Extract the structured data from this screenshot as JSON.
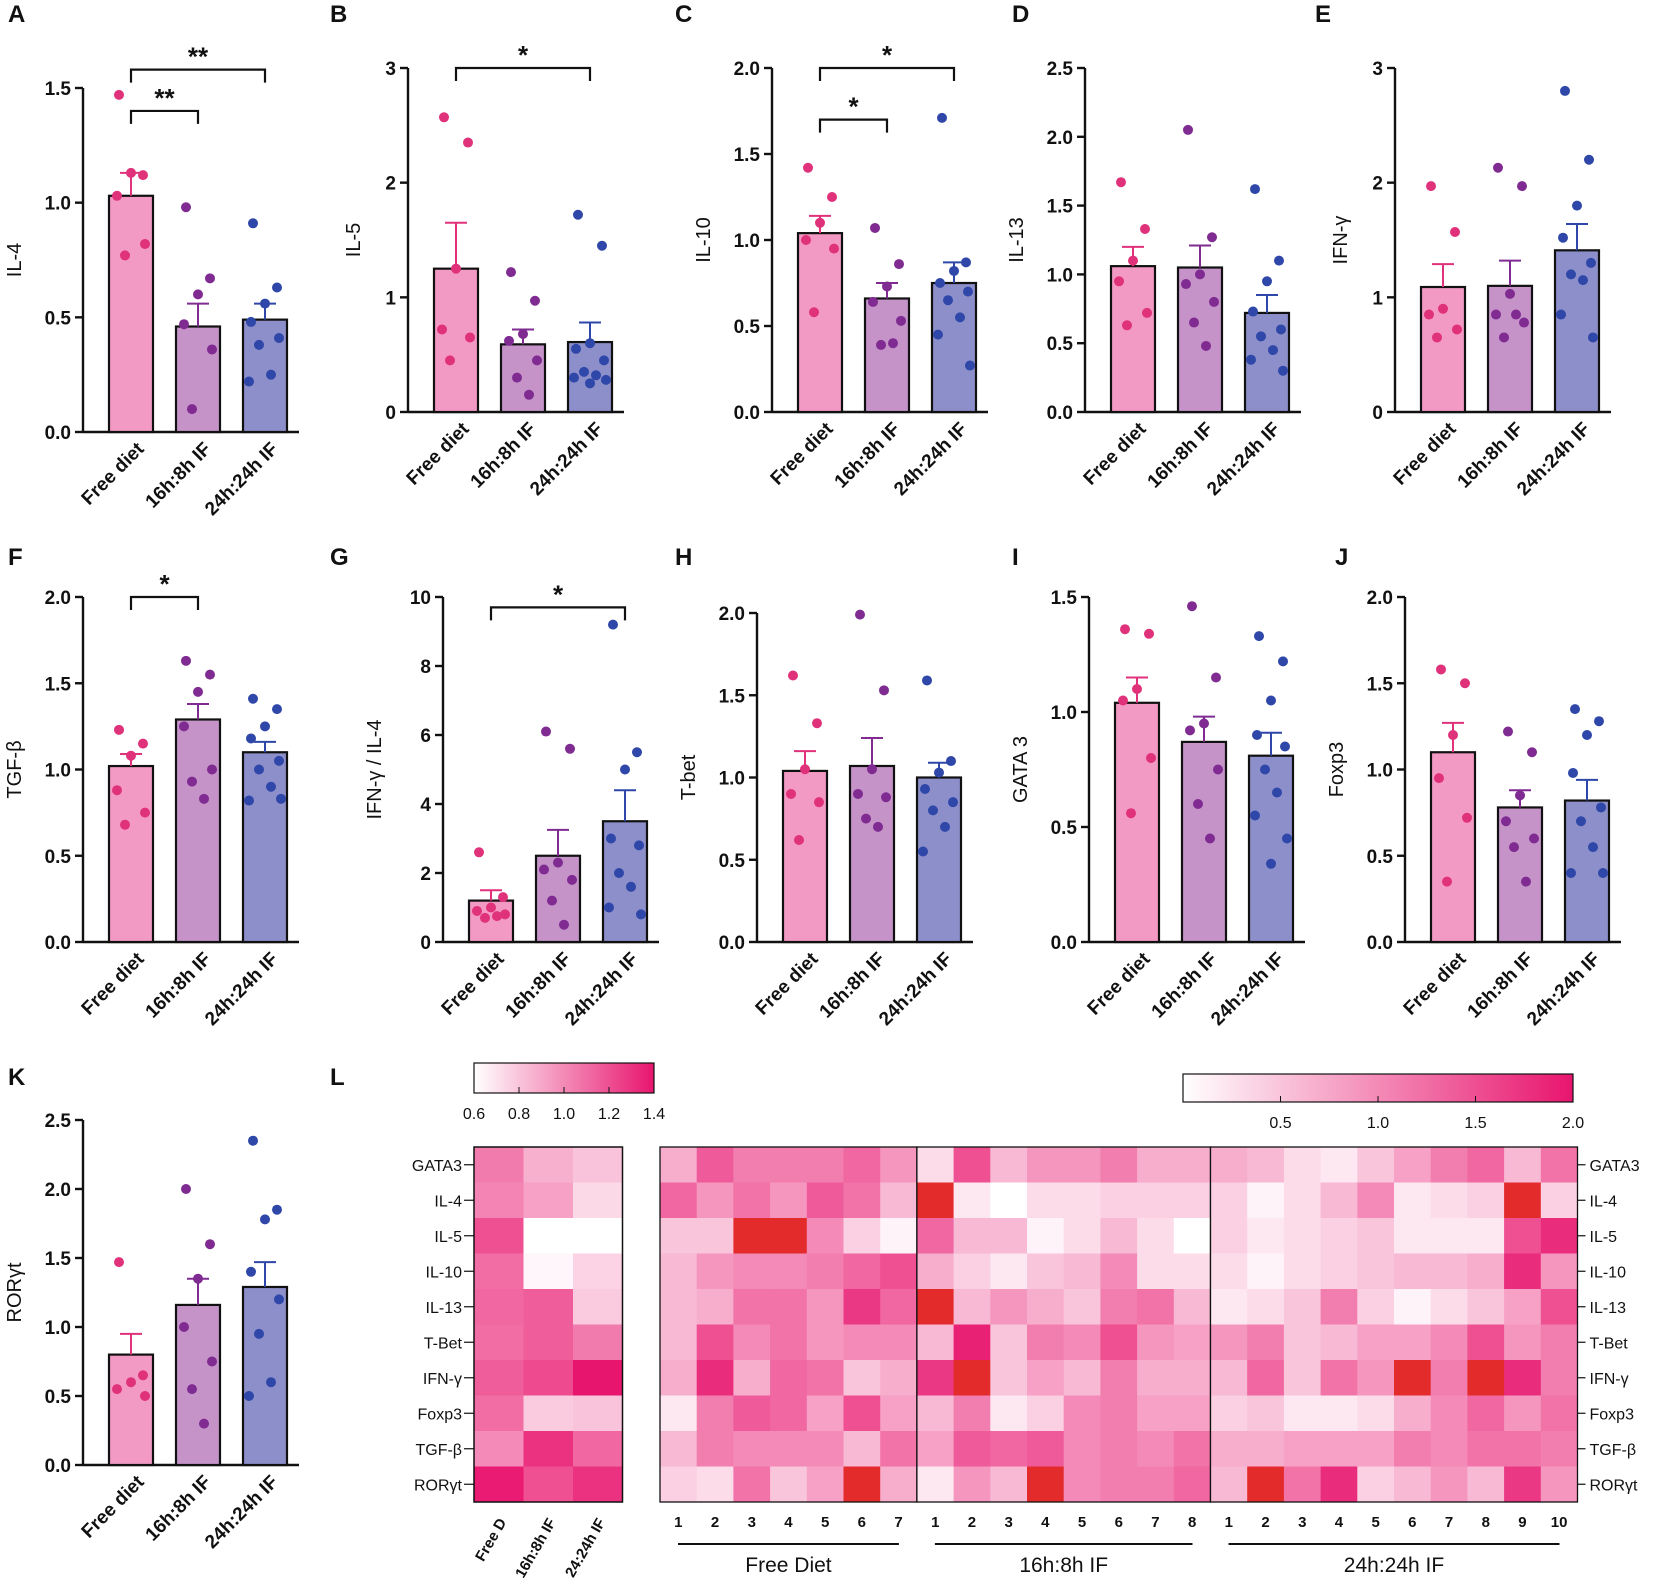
{
  "colors": {
    "free": "#f39ac4",
    "if16": "#c593c8",
    "if24": "#8d8fca",
    "dot_free": "#e0317b",
    "dot_if16": "#7f2b92",
    "dot_if24": "#2e47a8",
    "err_free": "#e0317b",
    "err_if16": "#7f2b92",
    "err_if24": "#2e47a8",
    "hm_low": "#ffffff",
    "hm_high": "#e8156e",
    "hm_extreme": "#e42b2b"
  },
  "chart_data": [
    {
      "id": "A",
      "type": "bar",
      "panel_label": "A",
      "ylabel": "IL-4",
      "ylim": [
        0,
        1.5
      ],
      "yticks": [
        "0.0",
        "0.5",
        "1.0",
        "1.5"
      ],
      "categories": [
        "Free diet",
        "16h:8h IF",
        "24h:24h IF"
      ],
      "values": [
        1.03,
        0.46,
        0.49
      ],
      "errors": [
        0.1,
        0.1,
        0.07
      ],
      "points": [
        [
          1.47,
          1.12,
          1.13,
          1.03,
          0.82,
          0.77
        ],
        [
          0.98,
          0.67,
          0.6,
          0.47,
          0.36,
          0.1
        ],
        [
          0.91,
          0.63,
          0.56,
          0.48,
          0.41,
          0.38,
          0.25,
          0.22
        ]
      ],
      "sig": [
        {
          "from": 0,
          "to": 1,
          "y": 1.4,
          "label": "**"
        },
        {
          "from": 0,
          "to": 2,
          "y": 1.58,
          "label": "**"
        }
      ]
    },
    {
      "id": "B",
      "type": "bar",
      "panel_label": "B",
      "ylabel": "IL-5",
      "ylim": [
        0,
        3
      ],
      "yticks": [
        "0",
        "1",
        "2",
        "3"
      ],
      "categories": [
        "Free diet",
        "16h:8h IF",
        "24h:24h IF"
      ],
      "values": [
        1.25,
        0.59,
        0.61
      ],
      "errors": [
        0.4,
        0.13,
        0.17
      ],
      "points": [
        [
          2.57,
          2.35,
          1.25,
          0.72,
          0.65,
          0.45
        ],
        [
          1.22,
          0.97,
          0.68,
          0.62,
          0.45,
          0.3,
          0.15
        ],
        [
          1.72,
          1.45,
          0.6,
          0.55,
          0.45,
          0.35,
          0.32,
          0.3,
          0.28,
          0.25
        ]
      ],
      "sig": [
        {
          "from": 0,
          "to": 2,
          "y": 3.0,
          "label": "*"
        }
      ]
    },
    {
      "id": "C",
      "type": "bar",
      "panel_label": "C",
      "ylabel": "IL-10",
      "ylim": [
        0,
        2.0
      ],
      "yticks": [
        "0.0",
        "0.5",
        "1.0",
        "1.5",
        "2.0"
      ],
      "categories": [
        "Free diet",
        "16h:8h IF",
        "24h:24h IF"
      ],
      "values": [
        1.04,
        0.66,
        0.75
      ],
      "errors": [
        0.1,
        0.09,
        0.12
      ],
      "points": [
        [
          1.42,
          1.25,
          1.1,
          1.0,
          0.95,
          0.58
        ],
        [
          1.07,
          0.86,
          0.73,
          0.64,
          0.53,
          0.39,
          0.4
        ],
        [
          1.71,
          0.87,
          0.82,
          0.75,
          0.7,
          0.65,
          0.55,
          0.45,
          0.27
        ]
      ],
      "sig": [
        {
          "from": 0,
          "to": 1,
          "y": 1.7,
          "label": "*"
        },
        {
          "from": 0,
          "to": 2,
          "y": 2.0,
          "label": "*"
        }
      ]
    },
    {
      "id": "D",
      "type": "bar",
      "panel_label": "D",
      "ylabel": "IL-13",
      "ylim": [
        0,
        2.5
      ],
      "yticks": [
        "0.0",
        "0.5",
        "1.0",
        "1.5",
        "2.0",
        "2.5"
      ],
      "categories": [
        "Free diet",
        "16h:8h IF",
        "24h:24h IF"
      ],
      "values": [
        1.06,
        1.05,
        0.72
      ],
      "errors": [
        0.14,
        0.16,
        0.13
      ],
      "points": [
        [
          1.67,
          1.33,
          1.1,
          0.95,
          0.72,
          0.63
        ],
        [
          2.05,
          1.27,
          1.0,
          0.93,
          0.8,
          0.65,
          0.48
        ],
        [
          1.62,
          1.1,
          0.95,
          0.73,
          0.6,
          0.55,
          0.45,
          0.38,
          0.3
        ]
      ],
      "sig": []
    },
    {
      "id": "E",
      "type": "bar",
      "panel_label": "E",
      "ylabel": "IFN-γ",
      "ylim": [
        0,
        3
      ],
      "yticks": [
        "0",
        "1",
        "2",
        "3"
      ],
      "categories": [
        "Free diet",
        "16h:8h IF",
        "24h:24h IF"
      ],
      "values": [
        1.09,
        1.1,
        1.41
      ],
      "errors": [
        0.2,
        0.22,
        0.23
      ],
      "points": [
        [
          1.97,
          1.57,
          0.9,
          0.85,
          0.72,
          0.65
        ],
        [
          2.13,
          1.97,
          1.03,
          0.85,
          0.78,
          0.65,
          0.85
        ],
        [
          2.8,
          2.2,
          1.8,
          1.52,
          1.3,
          1.2,
          1.15,
          0.85,
          0.65
        ]
      ],
      "sig": []
    },
    {
      "id": "F",
      "type": "bar",
      "panel_label": "F",
      "ylabel": "TGF-β",
      "ylim": [
        0,
        2.0
      ],
      "yticks": [
        "0.0",
        "0.5",
        "1.0",
        "1.5",
        "2.0"
      ],
      "categories": [
        "Free diet",
        "16h:8h IF",
        "24h:24h IF"
      ],
      "values": [
        1.02,
        1.29,
        1.1
      ],
      "errors": [
        0.07,
        0.09,
        0.06
      ],
      "points": [
        [
          1.23,
          1.15,
          1.08,
          0.88,
          0.75,
          0.68
        ],
        [
          1.63,
          1.55,
          1.45,
          1.25,
          1.0,
          0.93,
          0.83
        ],
        [
          1.41,
          1.35,
          1.25,
          1.18,
          1.05,
          1.0,
          0.9,
          0.82,
          0.83
        ]
      ],
      "sig": [
        {
          "from": 0,
          "to": 1,
          "y": 2.0,
          "label": "*"
        }
      ]
    },
    {
      "id": "G",
      "type": "bar",
      "panel_label": "G",
      "ylabel": "IFN-γ / IL-4",
      "ylim": [
        0,
        10
      ],
      "yticks": [
        "0",
        "2",
        "4",
        "6",
        "8",
        "10"
      ],
      "categories": [
        "Free diet",
        "16h:8h IF",
        "24h:24h IF"
      ],
      "values": [
        1.2,
        2.5,
        3.5
      ],
      "errors": [
        0.3,
        0.75,
        0.9
      ],
      "points": [
        [
          2.6,
          1.3,
          1.0,
          0.9,
          0.8,
          0.7,
          0.75
        ],
        [
          6.1,
          5.6,
          2.3,
          2.1,
          1.8,
          1.2,
          0.5
        ],
        [
          9.2,
          5.5,
          5.0,
          3.0,
          2.8,
          2.0,
          1.6,
          1.0,
          0.8
        ]
      ],
      "sig": [
        {
          "from": 0,
          "to": 2,
          "y": 9.7,
          "label": "*"
        }
      ]
    },
    {
      "id": "H",
      "type": "bar",
      "panel_label": "H",
      "ylabel": "T-bet",
      "ylim": [
        0,
        2.0
      ],
      "yticks": [
        "0.0",
        "0.5",
        "1.0",
        "1.5",
        "2.0"
      ],
      "categories": [
        "Free diet",
        "16h:8h IF",
        "24h:24h IF"
      ],
      "values": [
        1.04,
        1.07,
        1.0
      ],
      "errors": [
        0.12,
        0.17,
        0.09
      ],
      "points": [
        [
          1.62,
          1.33,
          1.05,
          0.9,
          0.85,
          0.62
        ],
        [
          1.99,
          1.53,
          1.05,
          0.9,
          0.88,
          0.75,
          0.7
        ],
        [
          1.59,
          1.1,
          1.03,
          0.93,
          0.85,
          0.8,
          0.7,
          0.55
        ]
      ],
      "sig": []
    },
    {
      "id": "I",
      "type": "bar",
      "panel_label": "I",
      "ylabel": "GATA 3",
      "ylim": [
        0,
        1.5
      ],
      "yticks": [
        "0.0",
        "0.5",
        "1.0",
        "1.5"
      ],
      "categories": [
        "Free diet",
        "16h:8h IF",
        "24h:24h IF"
      ],
      "values": [
        1.04,
        0.87,
        0.81
      ],
      "errors": [
        0.11,
        0.11,
        0.1
      ],
      "points": [
        [
          1.36,
          1.34,
          1.1,
          1.05,
          0.8,
          0.56
        ],
        [
          1.46,
          1.15,
          0.95,
          0.92,
          0.75,
          0.6,
          0.45
        ],
        [
          1.33,
          1.22,
          1.05,
          0.9,
          0.85,
          0.75,
          0.65,
          0.55,
          0.45,
          0.34
        ]
      ],
      "sig": []
    },
    {
      "id": "J",
      "type": "bar",
      "panel_label": "J",
      "ylabel": "Foxp3",
      "ylim": [
        0,
        2.0
      ],
      "yticks": [
        "0.0",
        "0.5",
        "1.0",
        "1.5",
        "2.0"
      ],
      "categories": [
        "Free diet",
        "16h:8h IF",
        "24h:24h IF"
      ],
      "values": [
        1.1,
        0.78,
        0.82
      ],
      "errors": [
        0.17,
        0.1,
        0.12
      ],
      "points": [
        [
          1.58,
          1.5,
          1.2,
          0.95,
          0.72,
          0.35
        ],
        [
          1.22,
          1.1,
          0.85,
          0.7,
          0.6,
          0.55,
          0.35
        ],
        [
          1.35,
          1.28,
          1.2,
          0.98,
          0.78,
          0.7,
          0.55,
          0.4,
          0.4
        ]
      ],
      "sig": []
    },
    {
      "id": "K",
      "type": "bar",
      "panel_label": "K",
      "ylabel": "RORγt",
      "ylim": [
        0,
        2.5
      ],
      "yticks": [
        "0.0",
        "0.5",
        "1.0",
        "1.5",
        "2.0",
        "2.5"
      ],
      "categories": [
        "Free diet",
        "16h:8h IF",
        "24h:24h IF"
      ],
      "values": [
        0.8,
        1.16,
        1.29
      ],
      "errors": [
        0.15,
        0.19,
        0.18
      ],
      "points": [
        [
          1.47,
          0.65,
          0.6,
          0.55,
          0.5
        ],
        [
          2.0,
          1.6,
          1.35,
          1.0,
          0.75,
          0.55,
          0.3
        ],
        [
          2.35,
          1.85,
          1.78,
          1.4,
          1.2,
          0.95,
          0.6,
          0.5
        ]
      ],
      "sig": []
    },
    {
      "id": "L",
      "type": "heatmap",
      "panel_label": "L",
      "rows": [
        "GATA3",
        "IL-4",
        "IL-5",
        "IL-10",
        "IL-13",
        "T-Bet",
        "IFN-γ",
        "Foxp3",
        "TGF-β",
        "RORγt"
      ],
      "summary_columns": [
        "Free D",
        "16h:8h IF",
        "24:24h IF"
      ],
      "summary_values": [
        [
          1.05,
          0.87,
          0.8
        ],
        [
          1.02,
          0.92,
          0.73
        ],
        [
          1.2,
          0.6,
          0.6
        ],
        [
          1.1,
          0.63,
          0.75
        ],
        [
          1.12,
          1.15,
          0.78
        ],
        [
          1.1,
          1.15,
          1.05
        ],
        [
          1.15,
          1.22,
          1.42
        ],
        [
          1.1,
          0.78,
          0.8
        ],
        [
          1.0,
          1.3,
          1.12
        ],
        [
          1.38,
          1.2,
          1.3
        ]
      ],
      "summary_colorbar": {
        "min": 0.6,
        "max": 1.4,
        "ticks": [
          "0.6",
          "0.8",
          "1.0",
          "1.2",
          "1.4"
        ]
      },
      "groups": [
        {
          "name": "Free Diet",
          "columns": [
            "1",
            "2",
            "3",
            "4",
            "5",
            "6",
            "7"
          ],
          "values": [
            [
              0.7,
              1.4,
              1.1,
              1.1,
              1.1,
              1.3,
              0.9
            ],
            [
              1.3,
              0.9,
              1.2,
              0.9,
              1.4,
              1.2,
              0.6
            ],
            [
              0.5,
              0.5,
              2.3,
              2.3,
              1.0,
              0.4,
              0.1
            ],
            [
              0.6,
              0.9,
              1.0,
              1.0,
              1.1,
              1.3,
              1.5
            ],
            [
              0.6,
              0.7,
              1.2,
              1.2,
              0.9,
              1.7,
              1.3
            ],
            [
              0.6,
              1.5,
              1.0,
              1.2,
              0.9,
              1.0,
              1.0
            ],
            [
              0.7,
              1.8,
              0.7,
              1.3,
              1.2,
              0.5,
              0.7
            ],
            [
              0.2,
              1.1,
              1.4,
              1.3,
              0.8,
              1.5,
              0.8
            ],
            [
              0.6,
              1.1,
              1.0,
              1.0,
              1.0,
              0.6,
              1.2
            ],
            [
              0.4,
              0.3,
              1.2,
              0.5,
              0.8,
              2.3,
              0.7
            ]
          ]
        },
        {
          "name": "16h:8h IF",
          "columns": [
            "1",
            "2",
            "3",
            "4",
            "5",
            "6",
            "7",
            "8"
          ],
          "values": [
            [
              0.3,
              1.5,
              0.6,
              0.9,
              0.9,
              1.1,
              0.7,
              0.7
            ],
            [
              2.4,
              0.2,
              0.0,
              0.3,
              0.3,
              0.4,
              0.4,
              0.4
            ],
            [
              1.3,
              0.6,
              0.6,
              0.1,
              0.3,
              0.6,
              0.3,
              0.0
            ],
            [
              0.7,
              0.4,
              0.2,
              0.5,
              0.6,
              1.0,
              0.3,
              0.3
            ],
            [
              2.4,
              0.6,
              0.9,
              0.7,
              0.5,
              1.1,
              1.2,
              0.6
            ],
            [
              0.6,
              1.9,
              0.5,
              1.1,
              1.0,
              1.5,
              0.9,
              0.8
            ],
            [
              1.7,
              2.3,
              0.5,
              0.8,
              0.6,
              1.1,
              0.7,
              0.7
            ],
            [
              0.6,
              1.1,
              0.2,
              0.4,
              1.0,
              1.1,
              0.8,
              0.8
            ],
            [
              0.8,
              1.4,
              1.3,
              1.4,
              1.0,
              1.1,
              1.0,
              1.2
            ],
            [
              0.2,
              0.9,
              0.6,
              2.4,
              1.0,
              1.1,
              1.1,
              1.3
            ]
          ]
        },
        {
          "name": "24h:24h IF",
          "columns": [
            "1",
            "2",
            "3",
            "4",
            "5",
            "6",
            "7",
            "8",
            "9",
            "10"
          ],
          "values": [
            [
              0.7,
              0.6,
              0.3,
              0.2,
              0.5,
              0.8,
              1.1,
              1.3,
              0.6,
              1.2
            ],
            [
              0.4,
              0.1,
              0.3,
              0.6,
              1.0,
              0.2,
              0.3,
              0.4,
              2.3,
              0.4
            ],
            [
              0.4,
              0.2,
              0.3,
              0.4,
              0.5,
              0.2,
              0.2,
              0.2,
              1.5,
              1.8
            ],
            [
              0.3,
              0.1,
              0.3,
              0.4,
              0.5,
              0.6,
              0.6,
              0.7,
              1.8,
              0.9
            ],
            [
              0.2,
              0.3,
              0.5,
              1.1,
              0.4,
              0.1,
              0.3,
              0.5,
              0.8,
              1.5
            ],
            [
              0.9,
              1.1,
              0.5,
              0.6,
              0.8,
              0.8,
              1.0,
              1.5,
              0.9,
              1.1
            ],
            [
              0.6,
              1.3,
              0.5,
              1.2,
              0.9,
              2.3,
              1.1,
              2.3,
              1.8,
              1.1
            ],
            [
              0.4,
              0.5,
              0.2,
              0.2,
              0.3,
              0.7,
              1.0,
              1.3,
              0.9,
              1.2
            ],
            [
              0.7,
              0.7,
              0.8,
              0.8,
              0.8,
              1.1,
              1.0,
              1.2,
              1.2,
              1.1
            ],
            [
              0.6,
              2.3,
              1.2,
              1.8,
              0.4,
              0.6,
              0.9,
              0.6,
              1.7,
              0.9
            ]
          ]
        }
      ],
      "group_colorbar": {
        "min": 0,
        "max": 2.0,
        "ticks": [
          "0.5",
          "1.0",
          "1.5",
          "2.0"
        ]
      }
    }
  ]
}
